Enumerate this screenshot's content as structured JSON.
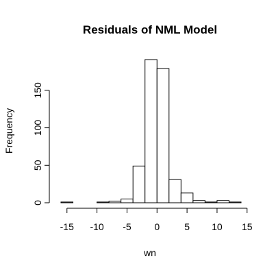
{
  "chart_data": {
    "type": "bar",
    "title": "Residuals of NML Model",
    "xlabel": "wn",
    "ylabel": "Frequency",
    "bin_width": 2,
    "bins": [
      {
        "x0": -16,
        "x1": -14,
        "value": 1
      },
      {
        "x0": -14,
        "x1": -12,
        "value": 0
      },
      {
        "x0": -12,
        "x1": -10,
        "value": 0
      },
      {
        "x0": -10,
        "x1": -8,
        "value": 1
      },
      {
        "x0": -8,
        "x1": -6,
        "value": 2
      },
      {
        "x0": -6,
        "x1": -4,
        "value": 5
      },
      {
        "x0": -4,
        "x1": -2,
        "value": 49
      },
      {
        "x0": -2,
        "x1": 0,
        "value": 191
      },
      {
        "x0": 0,
        "x1": 2,
        "value": 179
      },
      {
        "x0": 2,
        "x1": 4,
        "value": 31
      },
      {
        "x0": 4,
        "x1": 6,
        "value": 13
      },
      {
        "x0": 6,
        "x1": 8,
        "value": 3
      },
      {
        "x0": 8,
        "x1": 10,
        "value": 1
      },
      {
        "x0": 10,
        "x1": 12,
        "value": 3
      },
      {
        "x0": 12,
        "x1": 14,
        "value": 1
      }
    ],
    "xlim": [
      -16,
      14
    ],
    "ylim": [
      0,
      191
    ],
    "x_ticks": [
      -15,
      -10,
      -5,
      0,
      5,
      10,
      15
    ],
    "x_tick_labels": [
      "-15",
      "-10",
      "-5",
      "0",
      "5",
      "10",
      "15"
    ],
    "y_ticks": [
      0,
      50,
      100,
      150
    ],
    "y_tick_labels": [
      "0",
      "50",
      "100",
      "150"
    ],
    "grid": false,
    "legend": "none",
    "bar_fill": "#ffffff",
    "bar_stroke": "#000000"
  }
}
